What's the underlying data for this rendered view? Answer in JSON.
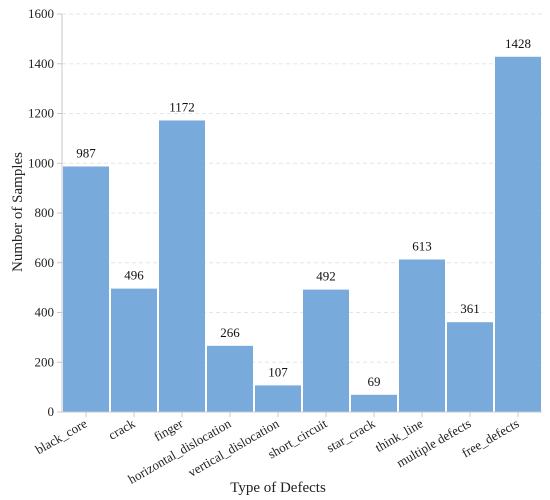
{
  "chart_data": {
    "type": "bar",
    "title": "",
    "xlabel": "Type of Defects",
    "ylabel": "Number of Samples",
    "categories": [
      "black_core",
      "crack",
      "finger",
      "horizontal_dislocation",
      "vertical_dislocation",
      "short_circuit",
      "star_crack",
      "think_line",
      "multiple defects",
      "free_defects"
    ],
    "values": [
      987,
      496,
      1172,
      266,
      107,
      492,
      69,
      613,
      361,
      1428
    ],
    "value_labels": [
      "987",
      "496",
      "1172",
      "266",
      "107",
      "492",
      "69",
      "613",
      "361",
      "1428"
    ],
    "ylim": [
      0,
      1600
    ],
    "yticks": [
      0,
      200,
      400,
      600,
      800,
      1000,
      1200,
      1400,
      1600
    ],
    "ytick_labels": [
      "0",
      "200",
      "400",
      "600",
      "800",
      "1000",
      "1200",
      "1400",
      "1600"
    ],
    "grid": "horizontal dashed",
    "bar_color": "#78aadb",
    "grid_color": "#e6e6e6",
    "axis_color": "#c8c8c8"
  }
}
